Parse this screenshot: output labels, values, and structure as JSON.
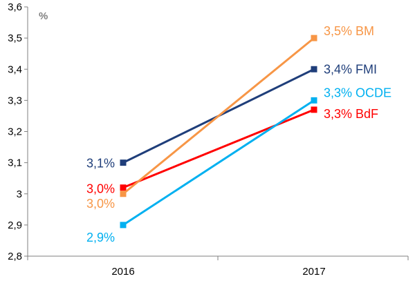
{
  "chart_data": {
    "type": "line",
    "unit_label": "%",
    "categories": [
      "2016",
      "2017"
    ],
    "ylim": [
      2.8,
      3.6
    ],
    "yticks": [
      "2,8",
      "2,9",
      "3",
      "3,1",
      "3,2",
      "3,3",
      "3,4",
      "3,5",
      "3,6"
    ],
    "grid": false,
    "series": [
      {
        "name": "FMI",
        "color": "#1F3E7A",
        "values": [
          3.1,
          3.4
        ],
        "labels": [
          "3,1%",
          "3,4% FMI"
        ]
      },
      {
        "name": "BdF",
        "color": "#FF0000",
        "values": [
          3.02,
          3.27
        ],
        "labels": [
          "3,0%",
          "3,3% BdF"
        ]
      },
      {
        "name": "BM",
        "color": "#F79646",
        "values": [
          3.0,
          3.5
        ],
        "labels": [
          "3,0%",
          "3,5% BM"
        ]
      },
      {
        "name": "OCDE",
        "color": "#00B0F0",
        "values": [
          2.9,
          3.3
        ],
        "labels": [
          "2,9%",
          "3,3% OCDE"
        ]
      }
    ]
  }
}
